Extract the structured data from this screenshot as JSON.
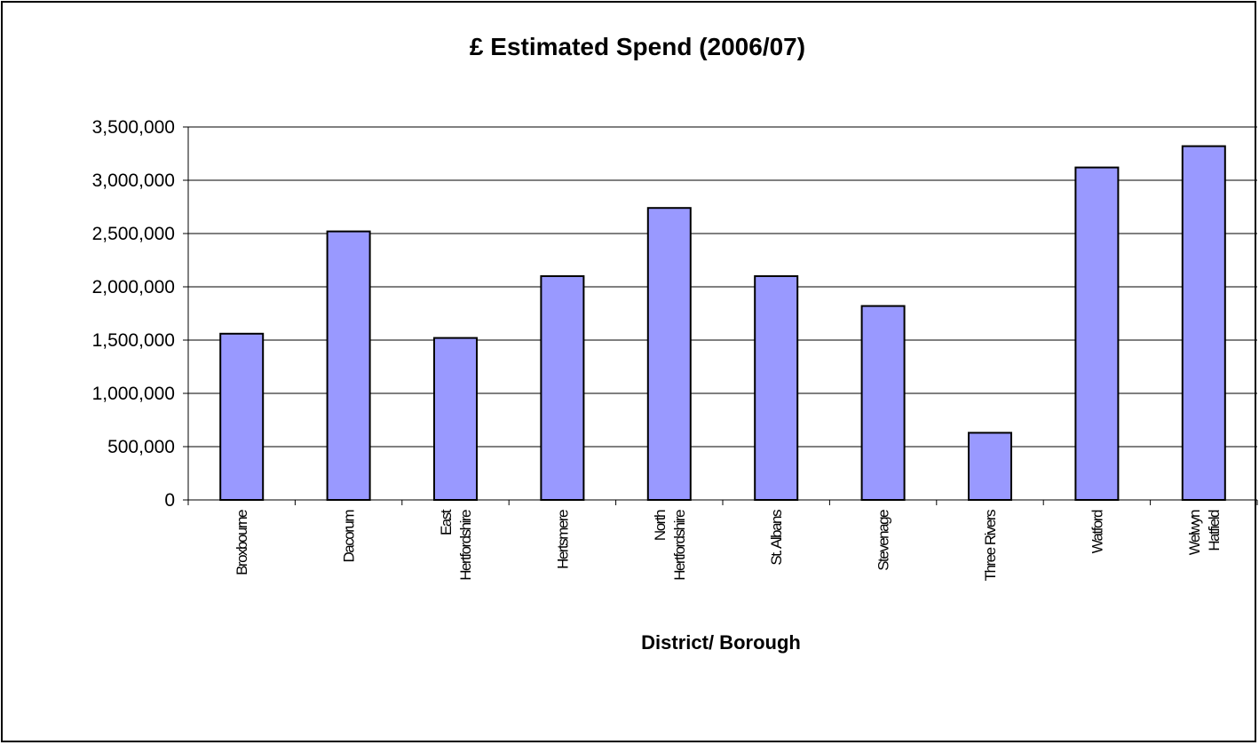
{
  "chart_data": {
    "type": "bar",
    "title": "£ Estimated Spend (2006/07)",
    "xlabel": "District/ Borough",
    "ylabel": "",
    "ylim": [
      0,
      3500000
    ],
    "yticks": [
      "0",
      "500,000",
      "1,000,000",
      "1,500,000",
      "2,000,000",
      "2,500,000",
      "3,000,000",
      "3,500,000"
    ],
    "grid": true,
    "legend": "none",
    "bar_color": "#9999ff",
    "categories": [
      [
        "Broxbourne"
      ],
      [
        "Dacorum"
      ],
      [
        "East",
        "Hertfordshire"
      ],
      [
        "Hertsmere"
      ],
      [
        "North",
        "Hertfordshire"
      ],
      [
        "St. Albans"
      ],
      [
        "Stevenage"
      ],
      [
        "Three Rivers"
      ],
      [
        "Watford"
      ],
      [
        "Welwyn",
        "Hatfield"
      ]
    ],
    "values": [
      1560000,
      2520000,
      1520000,
      2100000,
      2740000,
      2100000,
      1820000,
      630000,
      3120000,
      3320000
    ]
  }
}
